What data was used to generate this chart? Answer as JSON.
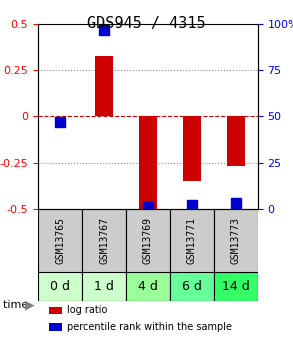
{
  "title": "GDS945 / 4315",
  "samples": [
    "GSM13765",
    "GSM13767",
    "GSM13769",
    "GSM13771",
    "GSM13773"
  ],
  "time_labels": [
    "0 d",
    "1 d",
    "4 d",
    "6 d",
    "14 d"
  ],
  "log_ratio": [
    0.0,
    0.33,
    -0.5,
    -0.35,
    -0.27
  ],
  "percentile_rank": [
    47,
    97,
    1,
    2,
    3
  ],
  "bar_color": "#cc0000",
  "dot_color": "#0000cc",
  "ylim_left": [
    -0.5,
    0.5
  ],
  "ylim_right": [
    0,
    100
  ],
  "yticks_left": [
    -0.5,
    -0.25,
    0,
    0.25,
    0.5
  ],
  "yticks_right": [
    0,
    25,
    50,
    75,
    100
  ],
  "yticklabels_right": [
    "0",
    "25",
    "50",
    "75",
    "100%"
  ],
  "grid_color": "#888888",
  "zero_line_color": "#cc0000",
  "background_color": "#ffffff",
  "sample_bg_color": "#cccccc",
  "time_bg_colors": [
    "#ccffcc",
    "#ccffcc",
    "#99ff99",
    "#66ff99",
    "#33ff66"
  ],
  "bar_width": 0.4,
  "dot_size": 50,
  "title_fontsize": 11,
  "tick_fontsize": 8,
  "label_fontsize": 8,
  "sample_fontsize": 7,
  "time_fontsize": 9
}
